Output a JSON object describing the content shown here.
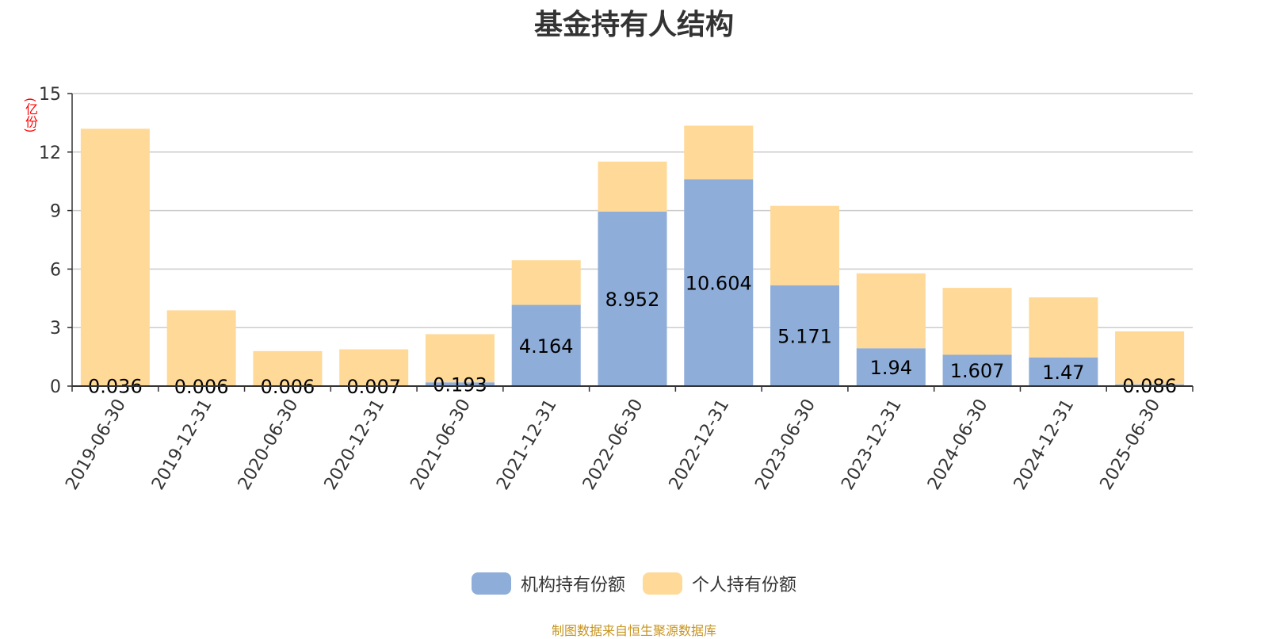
{
  "chart_data": {
    "type": "bar",
    "stacked": true,
    "title": "基金持有人结构",
    "ylabel": "(亿份)",
    "ylim": [
      0,
      15
    ],
    "yticks": [
      0,
      3,
      6,
      9,
      12,
      15
    ],
    "grid": true,
    "legend_position": "bottom",
    "categories": [
      "2019-06-30",
      "2019-12-31",
      "2020-06-30",
      "2020-12-31",
      "2021-06-30",
      "2021-12-31",
      "2022-06-30",
      "2022-12-31",
      "2023-06-30",
      "2023-12-31",
      "2024-06-30",
      "2024-12-31",
      "2025-06-30"
    ],
    "series": [
      {
        "name": "机构持有份额",
        "color": "#8eadd9",
        "values": [
          0.036,
          0.006,
          0.006,
          0.007,
          0.193,
          4.164,
          8.952,
          10.604,
          5.171,
          1.94,
          1.607,
          1.47,
          0.086
        ],
        "labels": [
          "0.036",
          "0.006",
          "0.006",
          "0.007",
          "0.193",
          "4.164",
          "8.952",
          "10.604",
          "5.171",
          "1.94",
          "1.607",
          "1.47",
          "0.086"
        ]
      },
      {
        "name": "个人持有份额",
        "color": "#ffd998",
        "values": [
          13.16,
          3.88,
          1.79,
          1.88,
          2.47,
          2.29,
          2.56,
          2.75,
          4.07,
          3.84,
          3.43,
          3.08,
          2.72
        ]
      }
    ],
    "source": "制图数据来自恒生聚源数据库"
  }
}
